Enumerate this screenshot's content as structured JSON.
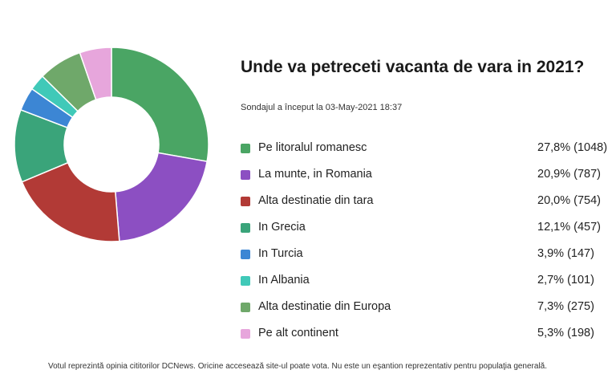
{
  "chart_data": {
    "type": "pie",
    "title": "Unde va petreceti vacanta de vara in 2021?",
    "subtitle": "Sondajul a început la 03-May-2021 18:37",
    "categories": [
      "Pe litoralul romanesc",
      "La munte, in Romania",
      "Alta destinatie din tara",
      "In Grecia",
      "In Turcia",
      "In Albania",
      "Alta destinatie din Europa",
      "Pe alt continent"
    ],
    "values": [
      27.8,
      20.9,
      20.0,
      12.1,
      3.9,
      2.7,
      7.3,
      5.3
    ],
    "counts": [
      1048,
      787,
      754,
      457,
      147,
      101,
      275,
      198
    ],
    "value_labels": [
      "27,8% (1048)",
      "20,9% (787)",
      "20,0% (754)",
      "12,1% (457)",
      "3,9% (147)",
      "2,7% (101)",
      "7,3% (275)",
      "5,3% (198)"
    ],
    "colors": [
      "#4aa564",
      "#8c4fc2",
      "#b23a36",
      "#3aa47a",
      "#3c86d4",
      "#40c9b8",
      "#6fa86a",
      "#e7a6dc"
    ],
    "donut": true,
    "legend_position": "right"
  },
  "footer": "Votul reprezintă opinia cititorilor DCNews. Oricine accesează site-ul poate vota. Nu este un eşantion reprezentativ pentru populaţia generală."
}
